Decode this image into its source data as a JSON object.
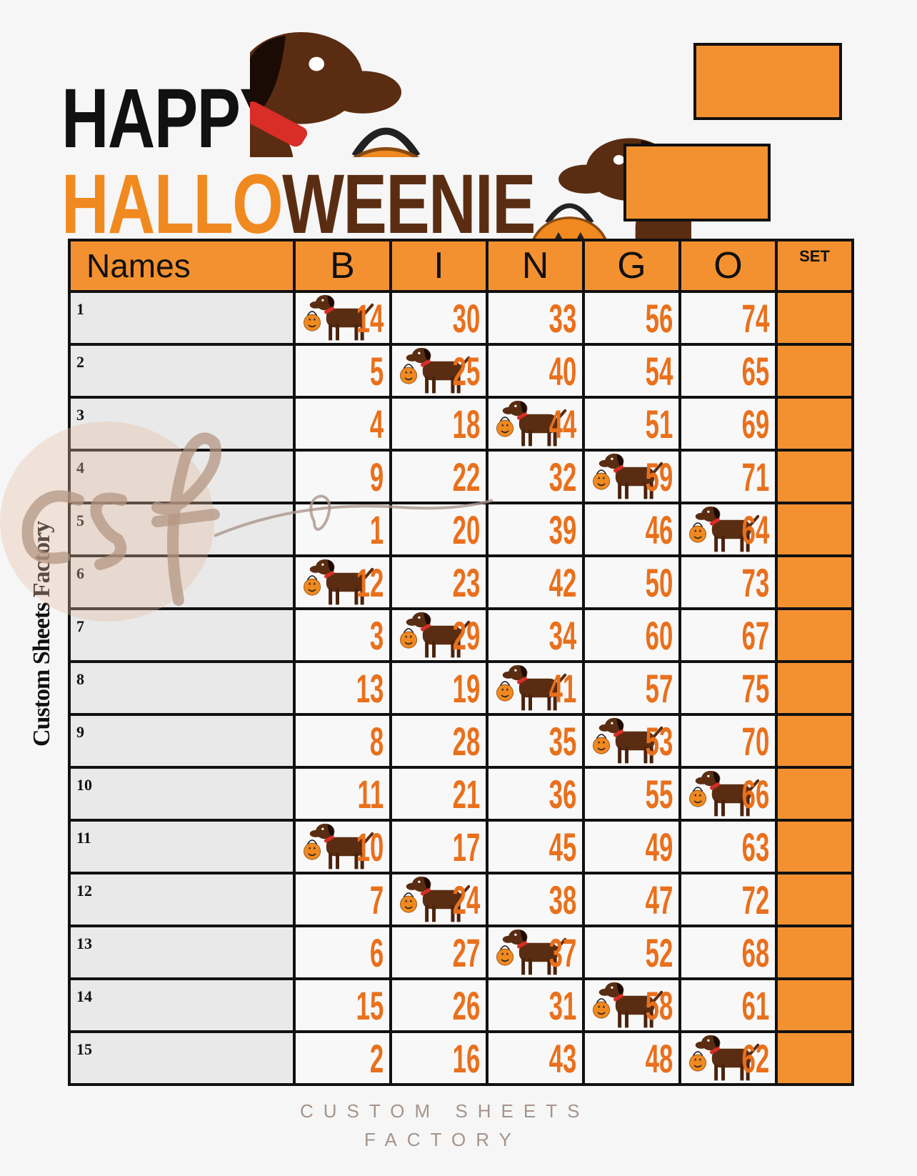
{
  "title": {
    "line1": "HAPPY",
    "line2_orange": "HALLO",
    "line2_brown": "WEENIE"
  },
  "colors": {
    "orange": "#f39130",
    "number_orange": "#e9701c",
    "dog_brown": "#5a2d12",
    "pumpkin": "#f0891f"
  },
  "table": {
    "headers": {
      "names": "Names",
      "letters": [
        "B",
        "I",
        "N",
        "G",
        "O"
      ],
      "set": "SET"
    },
    "rows": [
      {
        "label": "1",
        "numbers": [
          14,
          30,
          33,
          56,
          74
        ],
        "marked": 0
      },
      {
        "label": "2",
        "numbers": [
          5,
          25,
          40,
          54,
          65
        ],
        "marked": 1
      },
      {
        "label": "3",
        "numbers": [
          4,
          18,
          44,
          51,
          69
        ],
        "marked": 2
      },
      {
        "label": "4",
        "numbers": [
          9,
          22,
          32,
          59,
          71
        ],
        "marked": 3
      },
      {
        "label": "5",
        "numbers": [
          1,
          20,
          39,
          46,
          64
        ],
        "marked": 4
      },
      {
        "label": "6",
        "numbers": [
          12,
          23,
          42,
          50,
          73
        ],
        "marked": 0
      },
      {
        "label": "7",
        "numbers": [
          3,
          29,
          34,
          60,
          67
        ],
        "marked": 1
      },
      {
        "label": "8",
        "numbers": [
          13,
          19,
          41,
          57,
          75
        ],
        "marked": 2
      },
      {
        "label": "9",
        "numbers": [
          8,
          28,
          35,
          53,
          70
        ],
        "marked": 3
      },
      {
        "label": "10",
        "numbers": [
          11,
          21,
          36,
          55,
          66
        ],
        "marked": 4
      },
      {
        "label": "11",
        "numbers": [
          10,
          17,
          45,
          49,
          63
        ],
        "marked": 0
      },
      {
        "label": "12",
        "numbers": [
          7,
          24,
          38,
          47,
          72
        ],
        "marked": 1
      },
      {
        "label": "13",
        "numbers": [
          6,
          27,
          37,
          52,
          68
        ],
        "marked": 2
      },
      {
        "label": "14",
        "numbers": [
          15,
          26,
          31,
          58,
          61
        ],
        "marked": 3
      },
      {
        "label": "15",
        "numbers": [
          2,
          16,
          43,
          48,
          62
        ],
        "marked": 4
      }
    ]
  },
  "side_text": "Custom Sheets Factory",
  "watermark": {
    "logo": "csf",
    "line1": "CUSTOM SHEETS",
    "line2": "FACTORY"
  }
}
